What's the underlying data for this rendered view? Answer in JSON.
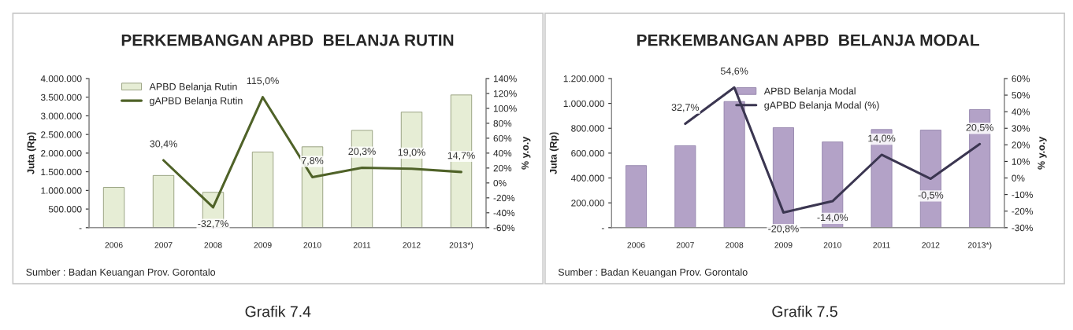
{
  "chart_data": [
    {
      "type": "bar",
      "title": "PERKEMBANGAN APBD  BELANJA RUTIN",
      "ylabel": "Juta (Rp)",
      "y2label": "% y.o.y",
      "categories": [
        "2006",
        "2007",
        "2008",
        "2009",
        "2010",
        "2011",
        "2012",
        "2013*)"
      ],
      "series": [
        {
          "name": "APBD Belanja Rutin",
          "color": "#e6edd5",
          "values": [
            1080000,
            1400000,
            950000,
            2030000,
            2170000,
            2610000,
            3100000,
            3560000
          ]
        },
        {
          "name": "gAPBD Belanja Rutin",
          "type": "line",
          "axis": "y2",
          "color": "#4f6228",
          "values": [
            null,
            30.4,
            -32.7,
            115.0,
            7.8,
            20.3,
            19.0,
            14.7
          ],
          "value_labels": [
            null,
            "30,4%",
            "-32,7%",
            "115,0%",
            "7,8%",
            "20,3%",
            "19,0%",
            "14,7%"
          ]
        }
      ],
      "ylim": [
        0,
        4000000
      ],
      "yticks": [
        {
          "value": 0,
          "label": "-"
        },
        {
          "value": 500000,
          "label": "500.000"
        },
        {
          "value": 1000000,
          "label": "1.000.000"
        },
        {
          "value": 1500000,
          "label": "1.500.000"
        },
        {
          "value": 2000000,
          "label": "2.000.000"
        },
        {
          "value": 2500000,
          "label": "2.500.000"
        },
        {
          "value": 3000000,
          "label": "3.000.000"
        },
        {
          "value": 3500000,
          "label": "3.500.000"
        },
        {
          "value": 4000000,
          "label": "4.000.000"
        }
      ],
      "y2lim": [
        -60,
        140
      ],
      "y2ticks": [
        {
          "value": -60,
          "label": "-60%"
        },
        {
          "value": -40,
          "label": "-40%"
        },
        {
          "value": -20,
          "label": "-20%"
        },
        {
          "value": 0,
          "label": "0%"
        },
        {
          "value": 20,
          "label": "20%"
        },
        {
          "value": 40,
          "label": "40%"
        },
        {
          "value": 60,
          "label": "60%"
        },
        {
          "value": 80,
          "label": "80%"
        },
        {
          "value": 100,
          "label": "100%"
        },
        {
          "value": 120,
          "label": "120%"
        },
        {
          "value": 140,
          "label": "140%"
        }
      ],
      "legend": "top left",
      "grid": false,
      "marker": "none",
      "line_style": "solid",
      "annotations": [
        "Sumber : Badan Keuangan Prov. Gorontalo",
        "Grafik 7.4"
      ]
    },
    {
      "type": "bar",
      "title": "PERKEMBANGAN APBD  BELANJA MODAL",
      "ylabel": "Juta (Rp)",
      "y2label": "% y.o.y",
      "categories": [
        "2006",
        "2007",
        "2008",
        "2009",
        "2010",
        "2011",
        "2012",
        "2013*)"
      ],
      "series": [
        {
          "name": "APBD Belanja Modal",
          "color": "#b3a2c7",
          "values": [
            500000,
            660000,
            1015000,
            805000,
            690000,
            790000,
            785000,
            950000
          ]
        },
        {
          "name": "gAPBD Belanja Modal (%)",
          "type": "line",
          "axis": "y2",
          "color": "#3b3651",
          "values": [
            null,
            32.7,
            54.6,
            -20.8,
            -14.0,
            14.0,
            -0.5,
            20.5
          ],
          "value_labels": [
            null,
            "32,7%",
            "54,6%",
            "-20,8%",
            "-14,0%",
            "14,0%",
            "-0,5%",
            "20,5%"
          ]
        }
      ],
      "ylim": [
        0,
        1200000
      ],
      "yticks": [
        {
          "value": 0,
          "label": "-"
        },
        {
          "value": 200000,
          "label": "200.000"
        },
        {
          "value": 400000,
          "label": "400.000"
        },
        {
          "value": 600000,
          "label": "600.000"
        },
        {
          "value": 800000,
          "label": "800.000"
        },
        {
          "value": 1000000,
          "label": "1.000.000"
        },
        {
          "value": 1200000,
          "label": "1.200.000"
        }
      ],
      "y2lim": [
        -30,
        60
      ],
      "y2ticks": [
        {
          "value": -30,
          "label": "-30%"
        },
        {
          "value": -20,
          "label": "-20%"
        },
        {
          "value": -10,
          "label": "-10%"
        },
        {
          "value": 0,
          "label": "0%"
        },
        {
          "value": 10,
          "label": "10%"
        },
        {
          "value": 20,
          "label": "20%"
        },
        {
          "value": 30,
          "label": "30%"
        },
        {
          "value": 40,
          "label": "40%"
        },
        {
          "value": 50,
          "label": "50%"
        },
        {
          "value": 60,
          "label": "60%"
        }
      ],
      "legend": "top",
      "grid": false,
      "marker": "none",
      "line_style": "solid",
      "annotations": [
        "Sumber : Badan Keuangan Prov. Gorontalo",
        "Grafik 7.5"
      ]
    }
  ]
}
